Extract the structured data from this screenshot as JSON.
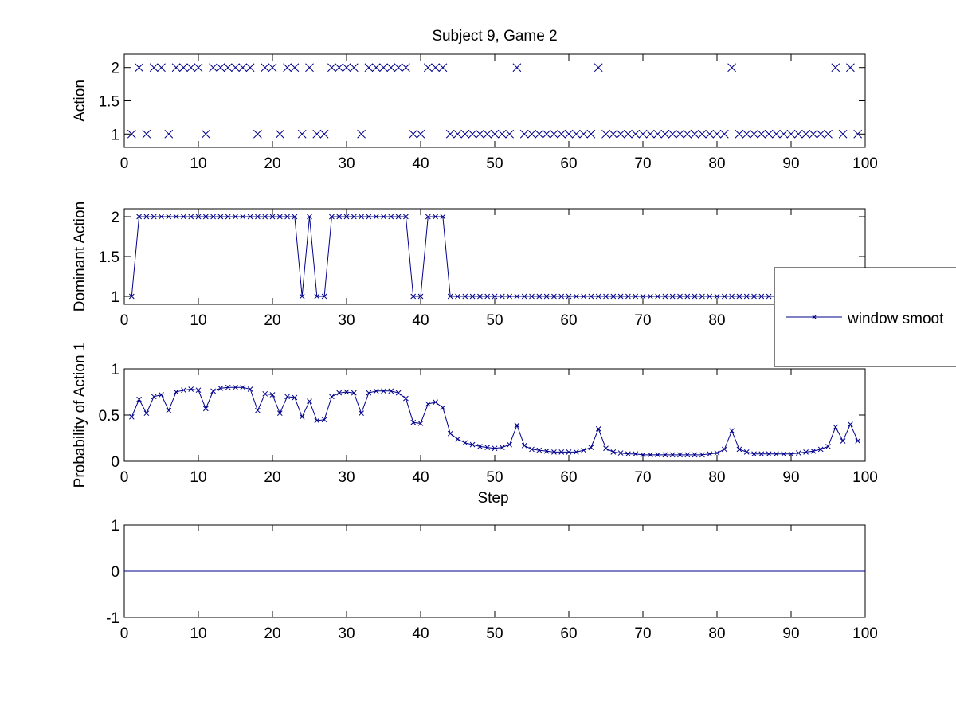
{
  "figure": {
    "title": "Subject 9, Game 2",
    "colors": {
      "series": "#00008B",
      "axes": "#000000",
      "background": "#ffffff"
    }
  },
  "legend": {
    "label": "window smoot",
    "marker": "x-line",
    "placement": "right, clipped at figure edge"
  },
  "chart_data": [
    {
      "type": "scatter",
      "name": "actions",
      "marker": "x",
      "ylabel": "Action",
      "xlabel": "",
      "xlim": [
        0,
        100
      ],
      "ylim": [
        0.8,
        2.2
      ],
      "xticks": [
        "0",
        "10",
        "20",
        "30",
        "40",
        "50",
        "60",
        "70",
        "80",
        "90",
        "100"
      ],
      "yticks": [
        "1",
        "1.5",
        "2"
      ],
      "ytick_values": [
        1,
        1.5,
        2
      ],
      "x": [
        1,
        2,
        3,
        4,
        5,
        6,
        7,
        8,
        9,
        10,
        11,
        12,
        13,
        14,
        15,
        16,
        17,
        18,
        19,
        20,
        21,
        22,
        23,
        24,
        25,
        26,
        27,
        28,
        29,
        30,
        31,
        32,
        33,
        34,
        35,
        36,
        37,
        38,
        39,
        40,
        41,
        42,
        43,
        44,
        45,
        46,
        47,
        48,
        49,
        50,
        51,
        52,
        53,
        54,
        55,
        56,
        57,
        58,
        59,
        60,
        61,
        62,
        63,
        64,
        65,
        66,
        67,
        68,
        69,
        70,
        71,
        72,
        73,
        74,
        75,
        76,
        77,
        78,
        79,
        80,
        81,
        82,
        83,
        84,
        85,
        86,
        87,
        88,
        89,
        90,
        91,
        92,
        93,
        94,
        95,
        96,
        97,
        98,
        99
      ],
      "y": [
        1,
        2,
        1,
        2,
        2,
        1,
        2,
        2,
        2,
        2,
        1,
        2,
        2,
        2,
        2,
        2,
        2,
        1,
        2,
        2,
        1,
        2,
        2,
        1,
        2,
        1,
        1,
        2,
        2,
        2,
        2,
        1,
        2,
        2,
        2,
        2,
        2,
        2,
        1,
        1,
        2,
        2,
        2,
        1,
        1,
        1,
        1,
        1,
        1,
        1,
        1,
        1,
        2,
        1,
        1,
        1,
        1,
        1,
        1,
        1,
        1,
        1,
        1,
        2,
        1,
        1,
        1,
        1,
        1,
        1,
        1,
        1,
        1,
        1,
        1,
        1,
        1,
        1,
        1,
        1,
        1,
        2,
        1,
        1,
        1,
        1,
        1,
        1,
        1,
        1,
        1,
        1,
        1,
        1,
        1,
        2,
        1,
        2,
        1
      ]
    },
    {
      "type": "line",
      "name": "dominant",
      "marker": "x",
      "ylabel": "Dominant Action",
      "xlabel": "",
      "xlim": [
        0,
        100
      ],
      "ylim": [
        0.9,
        2.1
      ],
      "xticks": [
        "0",
        "10",
        "20",
        "30",
        "40",
        "50",
        "60",
        "70",
        "80",
        "90",
        "100"
      ],
      "yticks": [
        "1",
        "1.5",
        "2"
      ],
      "ytick_values": [
        1,
        1.5,
        2
      ],
      "x": [
        1,
        2,
        3,
        4,
        5,
        6,
        7,
        8,
        9,
        10,
        11,
        12,
        13,
        14,
        15,
        16,
        17,
        18,
        19,
        20,
        21,
        22,
        23,
        24,
        25,
        26,
        27,
        28,
        29,
        30,
        31,
        32,
        33,
        34,
        35,
        36,
        37,
        38,
        39,
        40,
        41,
        42,
        43,
        44,
        45,
        46,
        47,
        48,
        49,
        50,
        51,
        52,
        53,
        54,
        55,
        56,
        57,
        58,
        59,
        60,
        61,
        62,
        63,
        64,
        65,
        66,
        67,
        68,
        69,
        70,
        71,
        72,
        73,
        74,
        75,
        76,
        77,
        78,
        79,
        80,
        81,
        82,
        83,
        84,
        85,
        86,
        87,
        88,
        89,
        90,
        91,
        92,
        93,
        94,
        95,
        96,
        97,
        98,
        99
      ],
      "y": [
        1,
        2,
        2,
        2,
        2,
        2,
        2,
        2,
        2,
        2,
        2,
        2,
        2,
        2,
        2,
        2,
        2,
        2,
        2,
        2,
        2,
        2,
        2,
        1,
        2,
        1,
        1,
        2,
        2,
        2,
        2,
        2,
        2,
        2,
        2,
        2,
        2,
        2,
        1,
        1,
        2,
        2,
        2,
        1,
        1,
        1,
        1,
        1,
        1,
        1,
        1,
        1,
        1,
        1,
        1,
        1,
        1,
        1,
        1,
        1,
        1,
        1,
        1,
        1,
        1,
        1,
        1,
        1,
        1,
        1,
        1,
        1,
        1,
        1,
        1,
        1,
        1,
        1,
        1,
        1,
        1,
        1,
        1,
        1,
        1,
        1,
        1,
        1,
        1,
        1,
        1,
        1,
        1,
        1,
        1,
        1,
        1,
        1,
        1
      ]
    },
    {
      "type": "line",
      "name": "probability",
      "marker": "x",
      "ylabel": "Probability of Action 1",
      "xlabel": "Step",
      "xlim": [
        0,
        100
      ],
      "ylim": [
        0,
        1
      ],
      "xticks": [
        "0",
        "10",
        "20",
        "30",
        "40",
        "50",
        "60",
        "70",
        "80",
        "90",
        "100"
      ],
      "yticks": [
        "0",
        "0.5",
        "1"
      ],
      "ytick_values": [
        0,
        0.5,
        1
      ],
      "x": [
        1,
        2,
        3,
        4,
        5,
        6,
        7,
        8,
        9,
        10,
        11,
        12,
        13,
        14,
        15,
        16,
        17,
        18,
        19,
        20,
        21,
        22,
        23,
        24,
        25,
        26,
        27,
        28,
        29,
        30,
        31,
        32,
        33,
        34,
        35,
        36,
        37,
        38,
        39,
        40,
        41,
        42,
        43,
        44,
        45,
        46,
        47,
        48,
        49,
        50,
        51,
        52,
        53,
        54,
        55,
        56,
        57,
        58,
        59,
        60,
        61,
        62,
        63,
        64,
        65,
        66,
        67,
        68,
        69,
        70,
        71,
        72,
        73,
        74,
        75,
        76,
        77,
        78,
        79,
        80,
        81,
        82,
        83,
        84,
        85,
        86,
        87,
        88,
        89,
        90,
        91,
        92,
        93,
        94,
        95,
        96,
        97,
        98,
        99
      ],
      "y": [
        0.48,
        0.67,
        0.52,
        0.7,
        0.72,
        0.55,
        0.75,
        0.77,
        0.78,
        0.77,
        0.57,
        0.76,
        0.79,
        0.8,
        0.8,
        0.8,
        0.78,
        0.55,
        0.73,
        0.72,
        0.52,
        0.7,
        0.69,
        0.48,
        0.65,
        0.44,
        0.45,
        0.7,
        0.74,
        0.75,
        0.74,
        0.52,
        0.74,
        0.76,
        0.76,
        0.76,
        0.74,
        0.68,
        0.42,
        0.41,
        0.62,
        0.64,
        0.58,
        0.3,
        0.24,
        0.2,
        0.18,
        0.16,
        0.15,
        0.14,
        0.15,
        0.18,
        0.39,
        0.17,
        0.13,
        0.12,
        0.11,
        0.1,
        0.1,
        0.1,
        0.1,
        0.12,
        0.15,
        0.35,
        0.14,
        0.1,
        0.09,
        0.08,
        0.08,
        0.07,
        0.07,
        0.07,
        0.07,
        0.07,
        0.07,
        0.07,
        0.07,
        0.07,
        0.08,
        0.09,
        0.13,
        0.33,
        0.13,
        0.1,
        0.08,
        0.08,
        0.08,
        0.08,
        0.08,
        0.08,
        0.09,
        0.1,
        0.11,
        0.13,
        0.16,
        0.37,
        0.22,
        0.4,
        0.22
      ]
    },
    {
      "type": "line",
      "name": "zero",
      "marker": "none",
      "ylabel": "",
      "xlabel": "",
      "xlim": [
        0,
        100
      ],
      "ylim": [
        -1,
        1
      ],
      "xticks": [
        "0",
        "10",
        "20",
        "30",
        "40",
        "50",
        "60",
        "70",
        "80",
        "90",
        "100"
      ],
      "yticks": [
        "-1",
        "0",
        "1"
      ],
      "ytick_values": [
        -1,
        0,
        1
      ],
      "x": [
        0,
        100
      ],
      "y": [
        0,
        0
      ]
    }
  ]
}
